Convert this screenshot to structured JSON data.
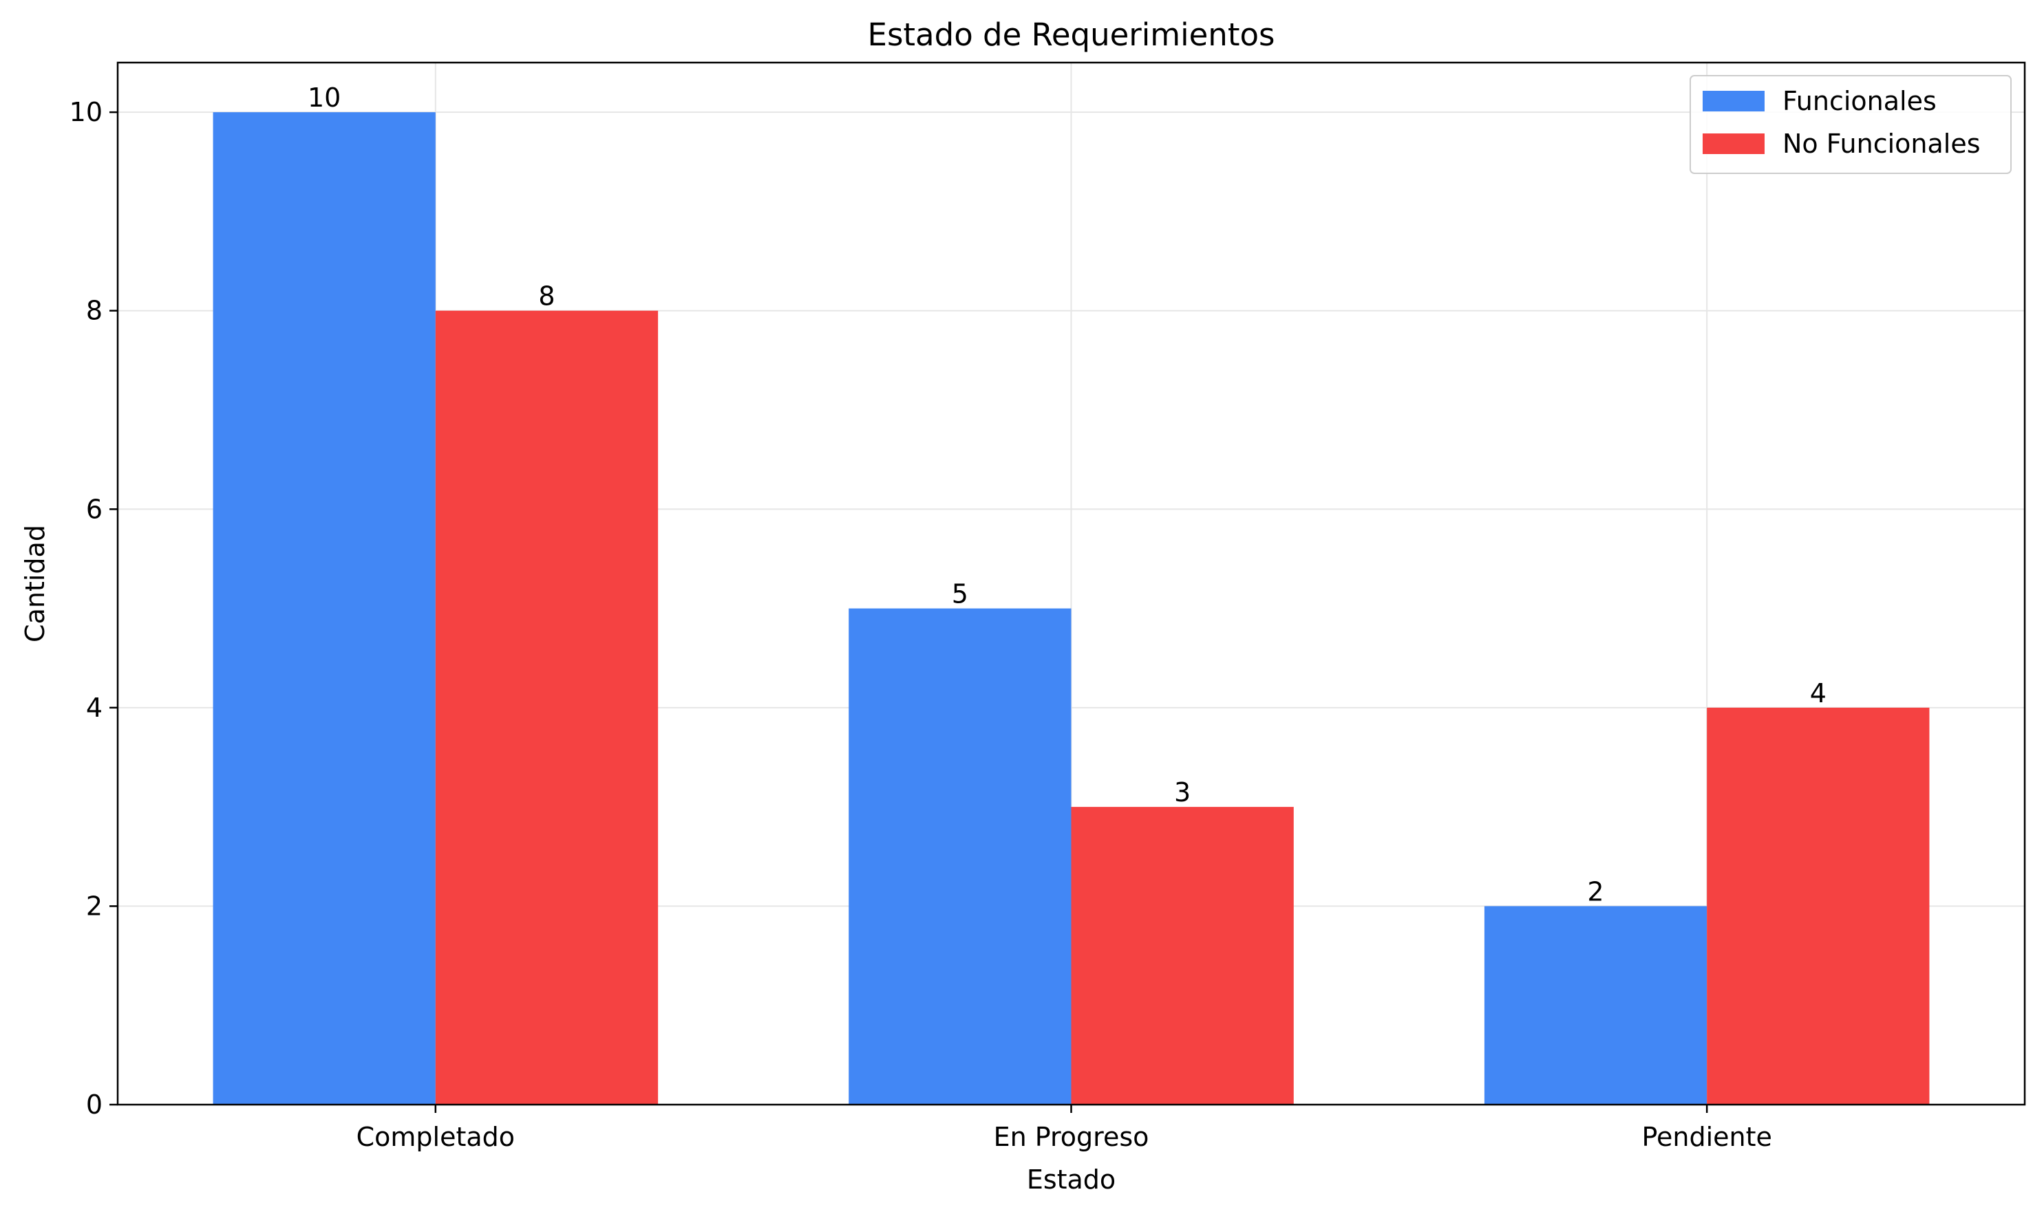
{
  "chart_data": {
    "type": "bar",
    "title": "Estado de Requerimientos",
    "xlabel": "Estado",
    "ylabel": "Cantidad",
    "categories": [
      "Completado",
      "En Progreso",
      "Pendiente"
    ],
    "series": [
      {
        "name": "Funcionales",
        "values": [
          10,
          5,
          2
        ],
        "color": "#4287f5"
      },
      {
        "name": "No Funcionales",
        "values": [
          8,
          3,
          4
        ],
        "color": "#f54242"
      }
    ],
    "ylim": [
      0,
      10.5
    ],
    "yticks": [
      0,
      2,
      4,
      6,
      8,
      10
    ],
    "grid": true,
    "legend_position": "top-right"
  }
}
